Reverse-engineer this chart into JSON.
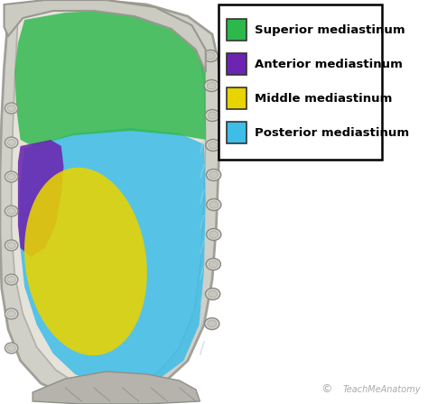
{
  "legend_items": [
    {
      "label": "Superior mediastinum",
      "color": "#2db84b"
    },
    {
      "label": "Anterior mediastinum",
      "color": "#6b25b0"
    },
    {
      "label": "Middle mediastinum",
      "color": "#e8d400"
    },
    {
      "label": "Posterior mediastinum",
      "color": "#3dbde8"
    }
  ],
  "bg_color": "#ffffff",
  "watermark": "TeachMeAnatomy",
  "fig_width": 4.74,
  "fig_height": 4.48,
  "dpi": 100,
  "legend_fontsize": 9.5,
  "superior_color": "#2db84b",
  "anterior_color": "#6b25b0",
  "middle_color": "#e8d400",
  "posterior_color": "#3dbde8",
  "bone_color": "#c8c8c0",
  "bone_edge": "#999990",
  "muscle_color": "#b8b0a8",
  "rib_color": "#c0bfb8",
  "rib_edge": "#888880"
}
